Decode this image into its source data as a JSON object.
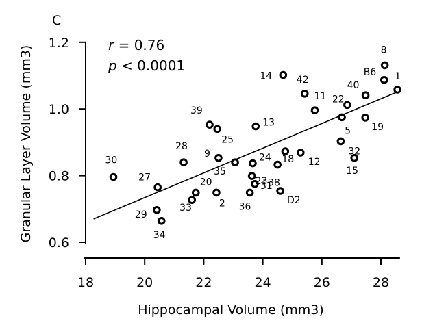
{
  "panel_label": "C",
  "stats": {
    "r_label": "r",
    "r_value": " = 0.76",
    "p_label": "p",
    "p_value": " < 0.0001"
  },
  "chart_data": {
    "type": "scatter",
    "xlabel": "Hippocampal Volume (mm3)",
    "ylabel": "Granular Layer Volume (mm3)",
    "xlim": [
      18,
      28.6
    ],
    "ylim": [
      0.6,
      1.2
    ],
    "xticks": [
      18,
      20,
      22,
      24,
      26,
      28
    ],
    "yticks": [
      0.6,
      0.8,
      1.0,
      1.2
    ],
    "ytick_labels": [
      "0.6",
      "0.8",
      "1.0",
      "1.2"
    ],
    "grid": false,
    "marker": "open-circle",
    "fit_line": {
      "x": [
        18.27,
        28.55
      ],
      "y": [
        0.67,
        1.051
      ]
    },
    "points": [
      {
        "label": "30",
        "x": 18.94,
        "y": 0.796
      },
      {
        "label": "27",
        "x": 20.44,
        "y": 0.765
      },
      {
        "label": "29",
        "x": 20.41,
        "y": 0.697
      },
      {
        "label": "34",
        "x": 20.57,
        "y": 0.664
      },
      {
        "label": "28",
        "x": 21.32,
        "y": 0.84
      },
      {
        "label": "33",
        "x": 21.6,
        "y": 0.727
      },
      {
        "label": "20",
        "x": 21.73,
        "y": 0.749
      },
      {
        "label": "39",
        "x": 22.2,
        "y": 0.953
      },
      {
        "label": "25",
        "x": 22.46,
        "y": 0.94
      },
      {
        "label": "9",
        "x": 22.5,
        "y": 0.853
      },
      {
        "label": "2",
        "x": 22.43,
        "y": 0.749
      },
      {
        "label": "35",
        "x": 23.06,
        "y": 0.84
      },
      {
        "label": "13",
        "x": 23.76,
        "y": 0.948
      },
      {
        "label": "24",
        "x": 23.66,
        "y": 0.837
      },
      {
        "label": "23",
        "x": 23.63,
        "y": 0.799
      },
      {
        "label": "31",
        "x": 23.73,
        "y": 0.775
      },
      {
        "label": "36",
        "x": 23.56,
        "y": 0.749
      },
      {
        "label": "38",
        "x": 24.5,
        "y": 0.833
      },
      {
        "label": "18",
        "x": 24.76,
        "y": 0.873
      },
      {
        "label": "D2",
        "x": 24.59,
        "y": 0.754
      },
      {
        "label": "14",
        "x": 24.69,
        "y": 1.102
      },
      {
        "label": "12",
        "x": 25.28,
        "y": 0.869
      },
      {
        "label": "42",
        "x": 25.42,
        "y": 1.046
      },
      {
        "label": "11",
        "x": 25.76,
        "y": 0.996
      },
      {
        "label": "22",
        "x": 26.86,
        "y": 1.012
      },
      {
        "label": "5",
        "x": 26.68,
        "y": 0.975
      },
      {
        "label": "32",
        "x": 26.64,
        "y": 0.903
      },
      {
        "label": "15",
        "x": 27.1,
        "y": 0.853
      },
      {
        "label": "19",
        "x": 27.47,
        "y": 0.974
      },
      {
        "label": "40",
        "x": 27.48,
        "y": 1.041
      },
      {
        "label": "B6",
        "x": 28.11,
        "y": 1.087
      },
      {
        "label": "8",
        "x": 28.13,
        "y": 1.131
      },
      {
        "label": "1",
        "x": 28.56,
        "y": 1.058
      }
    ]
  }
}
